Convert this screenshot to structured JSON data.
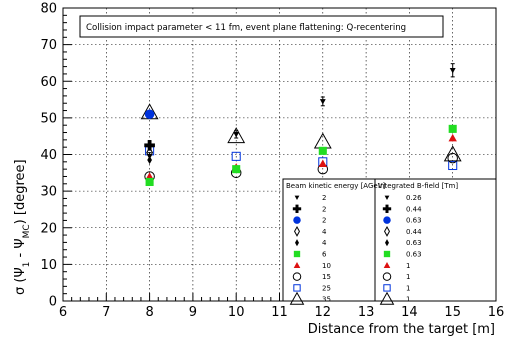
{
  "chart_data": {
    "type": "scatter",
    "title": "Collision impact parameter < 11 fm, event plane flattening: Q-recentering",
    "xlabel": "Distance from the target [m]",
    "ylabel": "σ (Ψ₁ - Ψ_MC) [degree]",
    "xlim": [
      6,
      16
    ],
    "ylim": [
      0,
      80
    ],
    "x_ticks": [
      "6",
      "7",
      "8",
      "9",
      "10",
      "11",
      "12",
      "13",
      "14",
      "15",
      "16"
    ],
    "y_ticks": [
      "0",
      "10",
      "20",
      "30",
      "40",
      "50",
      "60",
      "70",
      "80"
    ],
    "grid": true,
    "legend": {
      "position": "bottom-right",
      "col1_header": "Beam kinetic energy [AGeV]",
      "col2_header": "Integrated B-field [Tm]",
      "entries": [
        {
          "energy": "2",
          "field": "0.26"
        },
        {
          "energy": "2",
          "field": "0.44"
        },
        {
          "energy": "2",
          "field": "0.63"
        },
        {
          "energy": "4",
          "field": "0.44"
        },
        {
          "energy": "4",
          "field": "0.63"
        },
        {
          "energy": "6",
          "field": "0.63"
        },
        {
          "energy": "10",
          "field": "1"
        },
        {
          "energy": "15",
          "field": "1"
        },
        {
          "energy": "25",
          "field": "1"
        },
        {
          "energy": "35",
          "field": "1"
        }
      ]
    },
    "series": [
      {
        "energy": "2",
        "field": "0.26",
        "marker": "down-triangle",
        "color": "#000000",
        "x": [
          8,
          10,
          12,
          15
        ],
        "y": [
          39.5,
          45.5,
          54.5,
          63
        ],
        "yerr": [
          1,
          1,
          1.2,
          1.8
        ]
      },
      {
        "energy": "2",
        "field": "0.44",
        "marker": "cross",
        "color": "#000000",
        "x": [
          8
        ],
        "y": [
          42.5
        ],
        "yerr": [
          0
        ]
      },
      {
        "energy": "2",
        "field": "0.63",
        "marker": "circle-filled",
        "color": "#0033dd",
        "x": [
          8
        ],
        "y": [
          51
        ],
        "yerr": [
          0
        ]
      },
      {
        "energy": "4",
        "field": "0.44",
        "marker": "diamond-open",
        "color": "#000000",
        "x": [
          8
        ],
        "y": [
          40.5
        ],
        "yerr": [
          0
        ]
      },
      {
        "energy": "4",
        "field": "0.63",
        "marker": "diamond-filled",
        "color": "#000000",
        "x": [
          8
        ],
        "y": [
          38.5
        ],
        "yerr": [
          0
        ]
      },
      {
        "energy": "6",
        "field": "0.63",
        "marker": "square-filled",
        "color": "#22dd22",
        "x": [
          8,
          10,
          12,
          15
        ],
        "y": [
          32.5,
          36,
          41,
          47
        ],
        "yerr": [
          0,
          0,
          0,
          0
        ]
      },
      {
        "energy": "10",
        "field": "1",
        "marker": "up-triangle-filled",
        "color": "#dd1111",
        "x": [
          8,
          10,
          12,
          15
        ],
        "y": [
          34,
          36.5,
          37.5,
          44.5
        ],
        "yerr": [
          0,
          0,
          0,
          0
        ]
      },
      {
        "energy": "15",
        "field": "1",
        "marker": "circle-open",
        "color": "#000000",
        "x": [
          8,
          10,
          12,
          15
        ],
        "y": [
          34,
          35,
          36,
          39
        ],
        "yerr": [
          0,
          0,
          0,
          0
        ]
      },
      {
        "energy": "25",
        "field": "1",
        "marker": "square-open",
        "color": "#0033dd",
        "x": [
          8,
          10,
          12,
          15
        ],
        "y": [
          41,
          39.5,
          38,
          37
        ],
        "yerr": [
          0,
          0,
          0,
          0
        ]
      },
      {
        "energy": "35",
        "field": "1",
        "marker": "up-triangle-open",
        "color": "#000000",
        "x": [
          8,
          10,
          12,
          15
        ],
        "y": [
          51.5,
          45,
          43.5,
          40
        ],
        "yerr": [
          0,
          0,
          0,
          0
        ]
      }
    ]
  }
}
